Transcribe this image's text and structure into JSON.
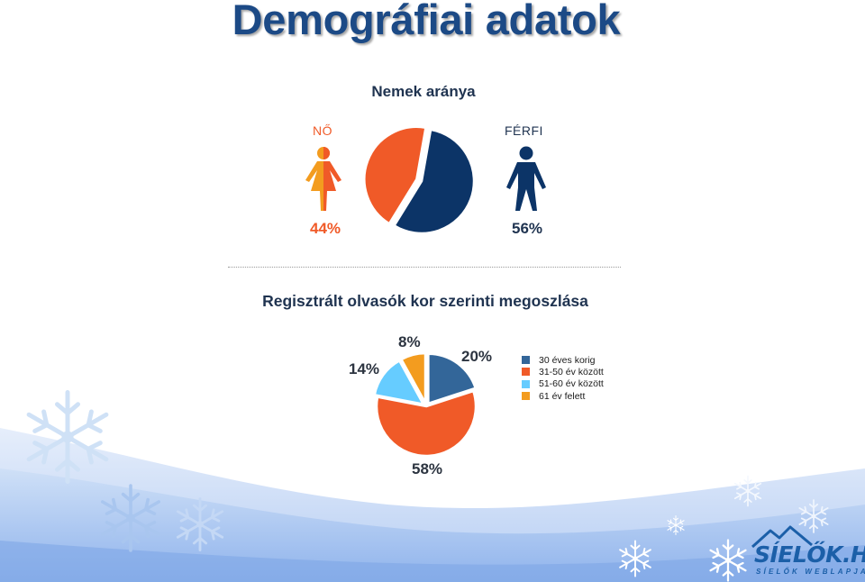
{
  "title": "Demográfiai adatok",
  "colors": {
    "title": "#1c4a86",
    "female": "#f05a28",
    "male": "#0c3467",
    "age_30": "#336699",
    "age_31_50": "#f05a28",
    "age_51_60": "#66ccff",
    "age_61": "#f39c1f"
  },
  "icons": [
    "female-figure-icon",
    "male-figure-icon",
    "snowflake-icon",
    "mountain-logo-icon"
  ],
  "chart_data": [
    {
      "type": "pie",
      "title": "Nemek aránya",
      "categories": [
        "FÉRFI",
        "NŐ"
      ],
      "values": [
        56,
        44
      ],
      "labels": [
        "56%",
        "44%"
      ],
      "colors": [
        "#0c3467",
        "#f05a28"
      ],
      "legend": "none"
    },
    {
      "type": "pie",
      "title": "Regisztrált olvasók kor szerinti megoszlása",
      "categories": [
        "30 éves korig",
        "31-50 év között",
        "51-60 év között",
        "61 év felett"
      ],
      "values": [
        20,
        58,
        14,
        8
      ],
      "labels": [
        "20%",
        "58%",
        "14%",
        "8%"
      ],
      "colors": [
        "#336699",
        "#f05a28",
        "#66ccff",
        "#f39c1f"
      ],
      "legend": "right"
    }
  ],
  "logo": {
    "name": "SÍELŐK.HU",
    "tagline": "SÍELŐK WEBLAPJA"
  }
}
